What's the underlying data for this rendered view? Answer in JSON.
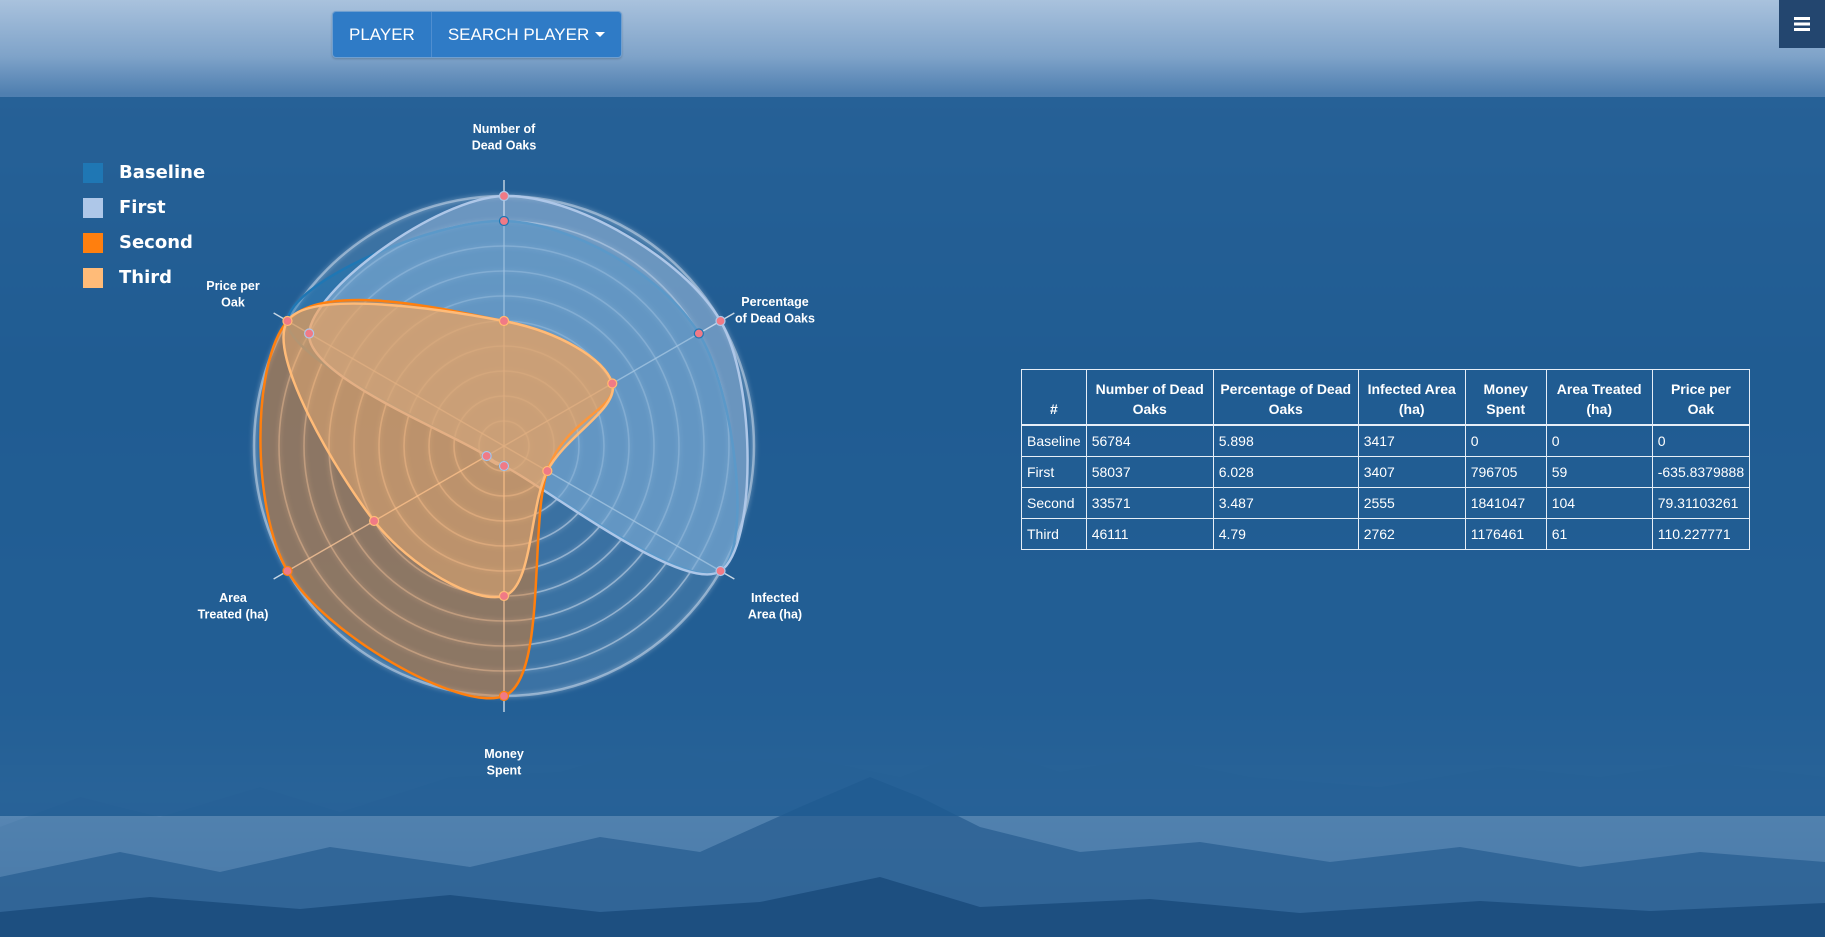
{
  "nav": {
    "player_label": "PLAYER",
    "search_player_label": "SEARCH PLAYER"
  },
  "legend": [
    {
      "label": "Baseline",
      "color": "#1f77b4"
    },
    {
      "label": "First",
      "color": "#aec7e8"
    },
    {
      "label": "Second",
      "color": "#ff7f0e"
    },
    {
      "label": "Third",
      "color": "#ffbb78"
    }
  ],
  "chart_data": {
    "type": "radar",
    "axes": [
      "Number of Dead Oaks",
      "Percentage of Dead Oaks",
      "Infected Area (ha)",
      "Money Spent",
      "Area Treated (ha)",
      "Price per Oak"
    ],
    "series": [
      {
        "name": "Baseline",
        "color": "#1f77b4",
        "values": [
          0.9,
          0.9,
          1.0,
          0.08,
          0.08,
          1.0
        ]
      },
      {
        "name": "First",
        "color": "#aec7e8",
        "values": [
          1.0,
          1.0,
          1.0,
          0.08,
          0.08,
          0.9
        ]
      },
      {
        "name": "Second",
        "color": "#ff7f0e",
        "values": [
          0.5,
          0.5,
          0.2,
          1.0,
          1.0,
          1.0
        ]
      },
      {
        "name": "Third",
        "color": "#ffbb78",
        "values": [
          0.5,
          0.5,
          0.2,
          0.6,
          0.6,
          1.0
        ]
      }
    ],
    "rings": 10,
    "grid": true
  },
  "table": {
    "headers": [
      "#",
      "Number of Dead Oaks",
      "Percentage of Dead Oaks",
      "Infected Area (ha)",
      "Money Spent",
      "Area Treated (ha)",
      "Price per Oak"
    ],
    "rows": [
      [
        "Baseline",
        "56784",
        "5.898",
        "3417",
        "0",
        "0",
        "0"
      ],
      [
        "First",
        "58037",
        "6.028",
        "3407",
        "796705",
        "59",
        "-635.8379888"
      ],
      [
        "Second",
        "33571",
        "3.487",
        "2555",
        "1841047",
        "104",
        "79.31103261"
      ],
      [
        "Third",
        "46111",
        "4.79",
        "2762",
        "1176461",
        "61",
        "110.227771"
      ]
    ]
  }
}
